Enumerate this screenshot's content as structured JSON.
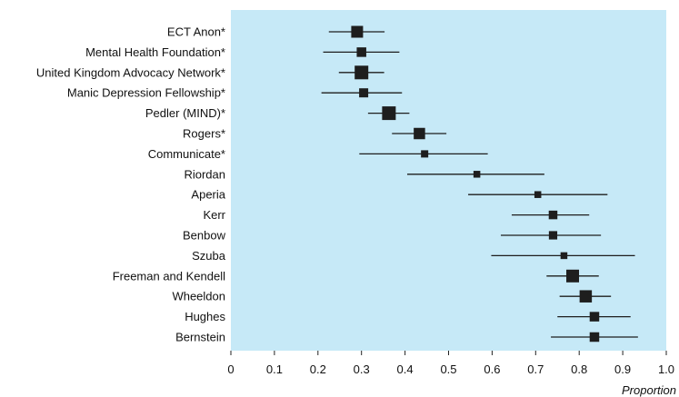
{
  "chart_data": {
    "type": "forest",
    "xlabel": "Proportion",
    "xlim": [
      0,
      1.0
    ],
    "xticks": [
      "0",
      "0.1",
      "0.2",
      "0.3",
      "0.4",
      "0.5",
      "0.6",
      "0.7",
      "0.8",
      "0.9",
      "1.0"
    ],
    "xtick_values": [
      0,
      0.1,
      0.2,
      0.3,
      0.4,
      0.5,
      0.6,
      0.7,
      0.8,
      0.9,
      1.0
    ],
    "grid": false,
    "studies": [
      {
        "label": "ECT Anon*",
        "estimate": 0.29,
        "lower": 0.225,
        "upper": 0.353,
        "weight": 0.8
      },
      {
        "label": "Mental Health Foundation*",
        "estimate": 0.3,
        "lower": 0.212,
        "upper": 0.387,
        "weight": 0.55
      },
      {
        "label": "United Kingdom Advocacy Network*",
        "estimate": 0.3,
        "lower": 0.248,
        "upper": 0.352,
        "weight": 1.0
      },
      {
        "label": "Manic Depression Fellowship*",
        "estimate": 0.305,
        "lower": 0.208,
        "upper": 0.393,
        "weight": 0.5
      },
      {
        "label": "Pedler (MIND)*",
        "estimate": 0.363,
        "lower": 0.315,
        "upper": 0.41,
        "weight": 1.0
      },
      {
        "label": "Rogers*",
        "estimate": 0.433,
        "lower": 0.37,
        "upper": 0.495,
        "weight": 0.75
      },
      {
        "label": "Communicate*",
        "estimate": 0.445,
        "lower": 0.295,
        "upper": 0.59,
        "weight": 0.3
      },
      {
        "label": "Riordan",
        "estimate": 0.565,
        "lower": 0.405,
        "upper": 0.72,
        "weight": 0.25
      },
      {
        "label": "Aperia",
        "estimate": 0.705,
        "lower": 0.545,
        "upper": 0.865,
        "weight": 0.25
      },
      {
        "label": "Kerr",
        "estimate": 0.74,
        "lower": 0.645,
        "upper": 0.823,
        "weight": 0.45
      },
      {
        "label": "Benbow",
        "estimate": 0.74,
        "lower": 0.62,
        "upper": 0.85,
        "weight": 0.42
      },
      {
        "label": "Szuba",
        "estimate": 0.765,
        "lower": 0.598,
        "upper": 0.928,
        "weight": 0.25
      },
      {
        "label": "Freeman and Kendell",
        "estimate": 0.785,
        "lower": 0.725,
        "upper": 0.845,
        "weight": 0.9
      },
      {
        "label": "Wheeldon",
        "estimate": 0.815,
        "lower": 0.755,
        "upper": 0.873,
        "weight": 0.85
      },
      {
        "label": "Hughes",
        "estimate": 0.835,
        "lower": 0.75,
        "upper": 0.918,
        "weight": 0.55
      },
      {
        "label": "Bernstein",
        "estimate": 0.835,
        "lower": 0.735,
        "upper": 0.935,
        "weight": 0.55
      }
    ],
    "colors": {
      "plot_background": "#c6e9f7",
      "marker": "#1e1e1e",
      "text": "#111111"
    }
  }
}
